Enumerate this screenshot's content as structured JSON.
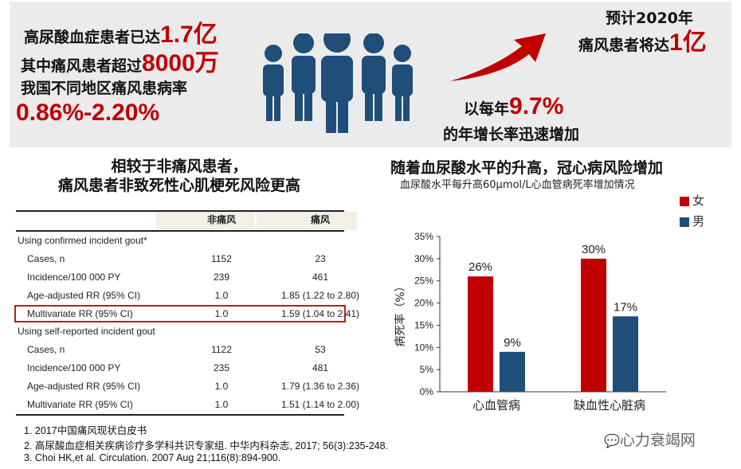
{
  "banner": {
    "line1_text": "高尿酸血症患者已达",
    "line1_value": "1.7亿",
    "line2_text": "其中痛风患者超过",
    "line2_value": "8000万",
    "line3_text": "我国不同地区痛风患病率",
    "line3_value": "0.86%-2.20%",
    "growth_prefix": "以每年",
    "growth_value": "9.7%",
    "growth_suffix": "的年增长率迅速增加",
    "forecast_line1": "预计2020年",
    "forecast_text": "痛风患者将达",
    "forecast_value": "1亿",
    "icons": [
      "people-group-icon",
      "arrow-up-right-icon"
    ],
    "colors": {
      "accent_red": "#c00000",
      "icon_navy": "#1f4e79"
    }
  },
  "table_section": {
    "title_line1": "相较于非痛风患者，",
    "title_line2": "痛风患者非致死性心肌梗死风险更高",
    "headers": [
      "非痛风",
      "痛风"
    ],
    "groups": [
      {
        "label": "Using confirmed incident gout*",
        "rows": [
          {
            "label": "Cases, n",
            "non_gout": "1152",
            "gout": "23"
          },
          {
            "label": "Incidence/100 000 PY",
            "non_gout": "239",
            "gout": "461"
          },
          {
            "label": "Age-adjusted RR (95% CI)",
            "non_gout": "1.0",
            "gout": "1.85 (1.22 to 2.80)"
          },
          {
            "label": "Multivariate RR (95% CI)",
            "non_gout": "1.0",
            "gout": "1.59 (1.04 to 2.41)",
            "highlighted": true
          }
        ]
      },
      {
        "label": "Using self-reported incident gout",
        "rows": [
          {
            "label": "Cases, n",
            "non_gout": "1122",
            "gout": "53"
          },
          {
            "label": "Incidence/100 000 PY",
            "non_gout": "235",
            "gout": "481"
          },
          {
            "label": "Age-adjusted RR (95% CI)",
            "non_gout": "1.0",
            "gout": "1.79 (1.36 to 2.36)"
          },
          {
            "label": "Multivariate RR (95% CI)",
            "non_gout": "1.0",
            "gout": "1.51 (1.14 to 2.00)"
          }
        ]
      }
    ]
  },
  "chart_data": {
    "type": "bar",
    "title": "随着血尿酸水平的升高，冠心病风险增加",
    "subtitle": "血尿酸水平每升高60μmol/L心血管病死率增加情况",
    "ylabel": "病死率（%）",
    "categories": [
      "心血管病",
      "缺血性心脏病"
    ],
    "series": [
      {
        "name": "女",
        "values": [
          26,
          30
        ],
        "labels": [
          "26%",
          "30%"
        ],
        "color": "#c00000"
      },
      {
        "name": "男",
        "values": [
          9,
          17
        ],
        "labels": [
          "9%",
          "17%"
        ],
        "color": "#1f4e79"
      }
    ],
    "ylim": [
      0,
      35
    ],
    "yticks": [
      "0%",
      "5%",
      "10%",
      "15%",
      "20%",
      "25%",
      "30%",
      "35%"
    ],
    "grid": false,
    "legend": "top-right"
  },
  "footnotes": [
    "1. 2017中国痛风现状白皮书",
    "2. 高尿酸血症相关疾病诊疗多学科共识专家组. 中华内科杂志, 2017; 56(3):235-248.",
    "3. Choi HK,et al. Circulation. 2007 Aug 21;116(8):894-900."
  ],
  "watermark": "心力衰竭网"
}
